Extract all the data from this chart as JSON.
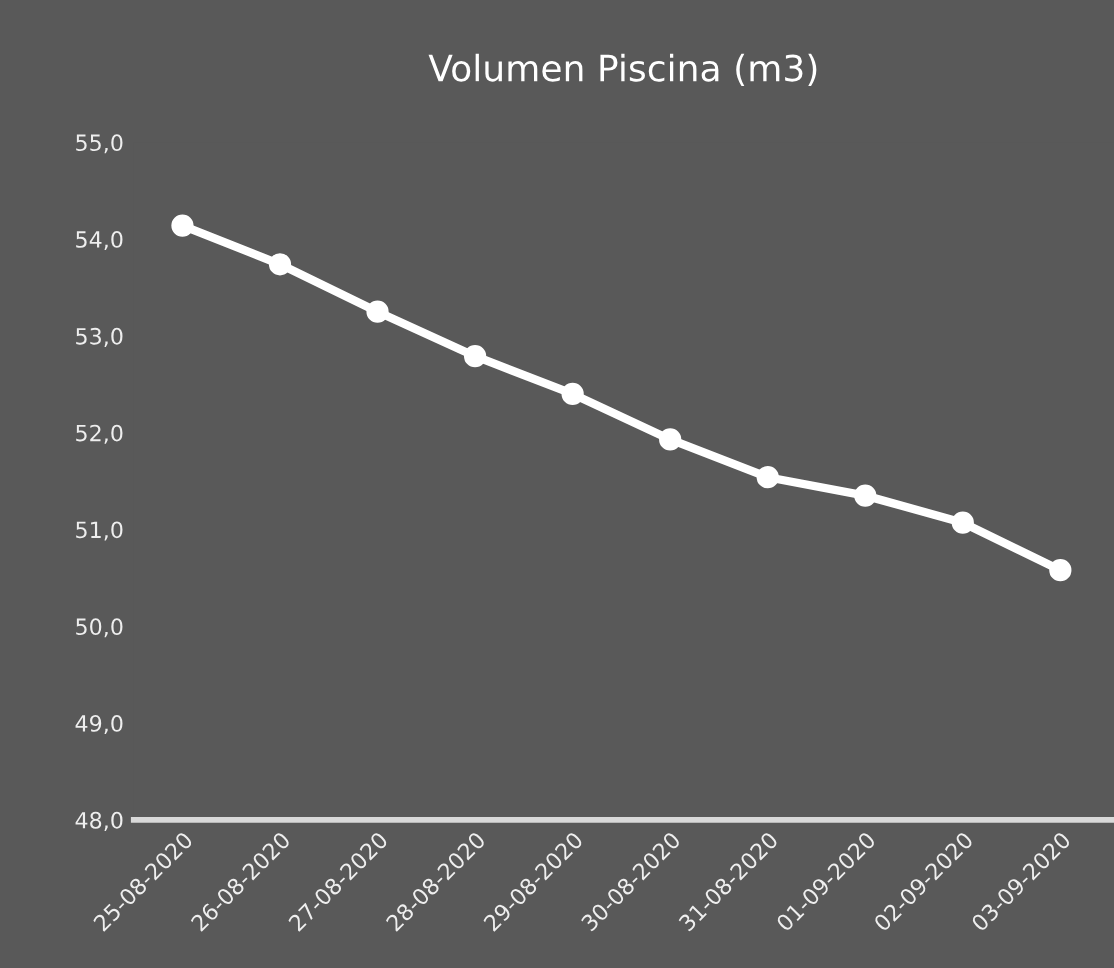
{
  "chart_data": {
    "type": "line",
    "title": "Volumen Piscina (m3)",
    "categories": [
      "25-08-2020",
      "26-08-2020",
      "27-08-2020",
      "28-08-2020",
      "29-08-2020",
      "30-08-2020",
      "31-08-2020",
      "01-09-2020",
      "02-09-2020",
      "03-09-2020"
    ],
    "series": [
      {
        "color": "#ffffff",
        "values": [
          54.14,
          53.74,
          53.25,
          52.79,
          52.4,
          51.93,
          51.54,
          51.35,
          51.07,
          50.58
        ]
      }
    ],
    "ylim": [
      48,
      55
    ],
    "yticks": [
      {
        "value": 48,
        "label": "48,0"
      },
      {
        "value": 49,
        "label": "49,0"
      },
      {
        "value": 50,
        "label": "50,0"
      },
      {
        "value": 51,
        "label": "51,0"
      },
      {
        "value": 52,
        "label": "52,0"
      },
      {
        "value": 53,
        "label": "53,0"
      },
      {
        "value": 54,
        "label": "54,0"
      },
      {
        "value": 55,
        "label": "55,0"
      }
    ],
    "grid": false,
    "legend": false,
    "marker": "circle",
    "line_style": "solid"
  }
}
